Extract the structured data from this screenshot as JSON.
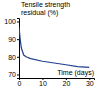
{
  "chart_data": {
    "type": "line",
    "y_label": [
      "Tensile strength",
      "residual (%)"
    ],
    "x_label": "Time (days)",
    "x": [
      0,
      0.5,
      1,
      2,
      3,
      5,
      10,
      15,
      20,
      25,
      30
    ],
    "values": [
      97,
      90,
      85,
      81,
      80,
      79,
      77.5,
      76.5,
      75.5,
      74.5,
      74
    ],
    "color": "#1f3f8f",
    "xlim": [
      0,
      32
    ],
    "xticks": [
      0,
      10,
      20,
      30
    ],
    "ylim": [
      68,
      102
    ],
    "yticks": [
      70,
      80,
      90,
      100
    ],
    "grid": false
  }
}
